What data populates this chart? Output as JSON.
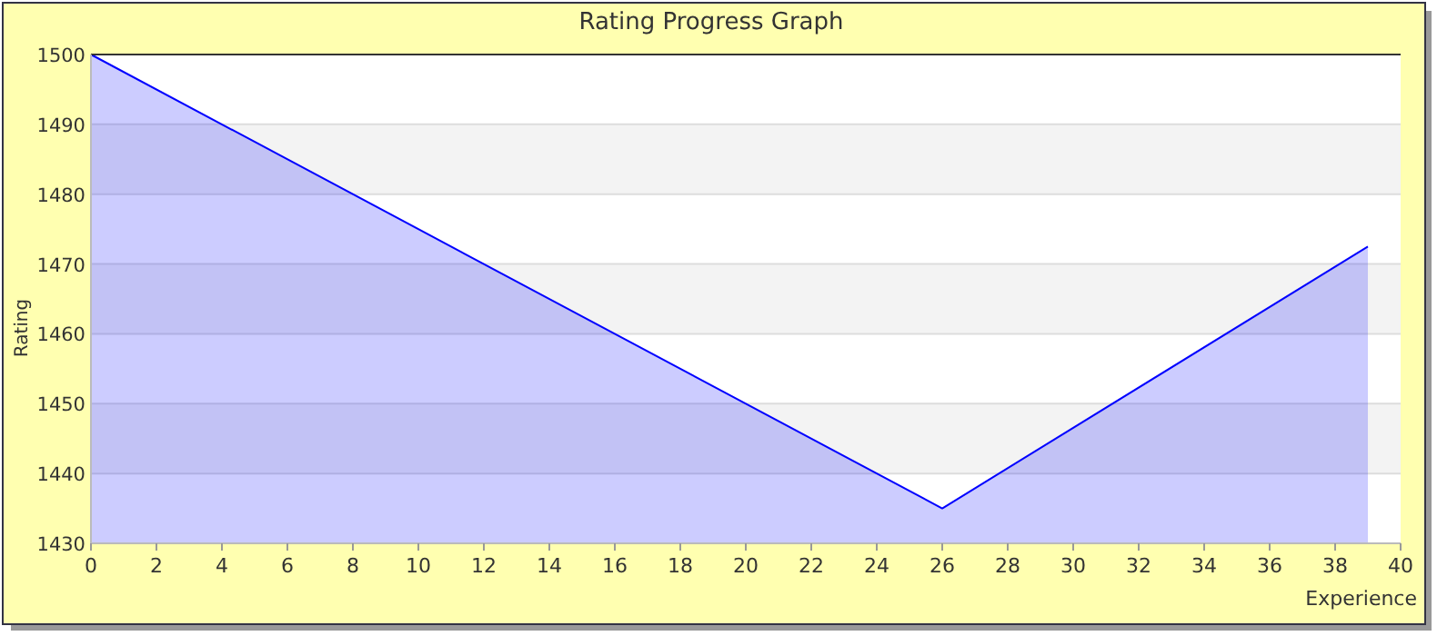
{
  "chart_data": {
    "type": "area",
    "title": "Rating Progress Graph",
    "xlabel": "Experience",
    "ylabel": "Rating",
    "x": [
      0,
      26,
      39
    ],
    "series": [
      {
        "color": "#0000ff",
        "values": [
          1500,
          1435,
          1472.5
        ]
      }
    ],
    "xlim": [
      0,
      40
    ],
    "xticks": [
      0,
      2,
      4,
      6,
      8,
      10,
      12,
      14,
      16,
      18,
      20,
      22,
      24,
      26,
      28,
      30,
      32,
      34,
      36,
      38,
      40
    ],
    "ylim": [
      1430,
      1500
    ],
    "yticks": [
      1430,
      1440,
      1450,
      1460,
      1470,
      1480,
      1490,
      1500
    ],
    "grid": "y"
  }
}
